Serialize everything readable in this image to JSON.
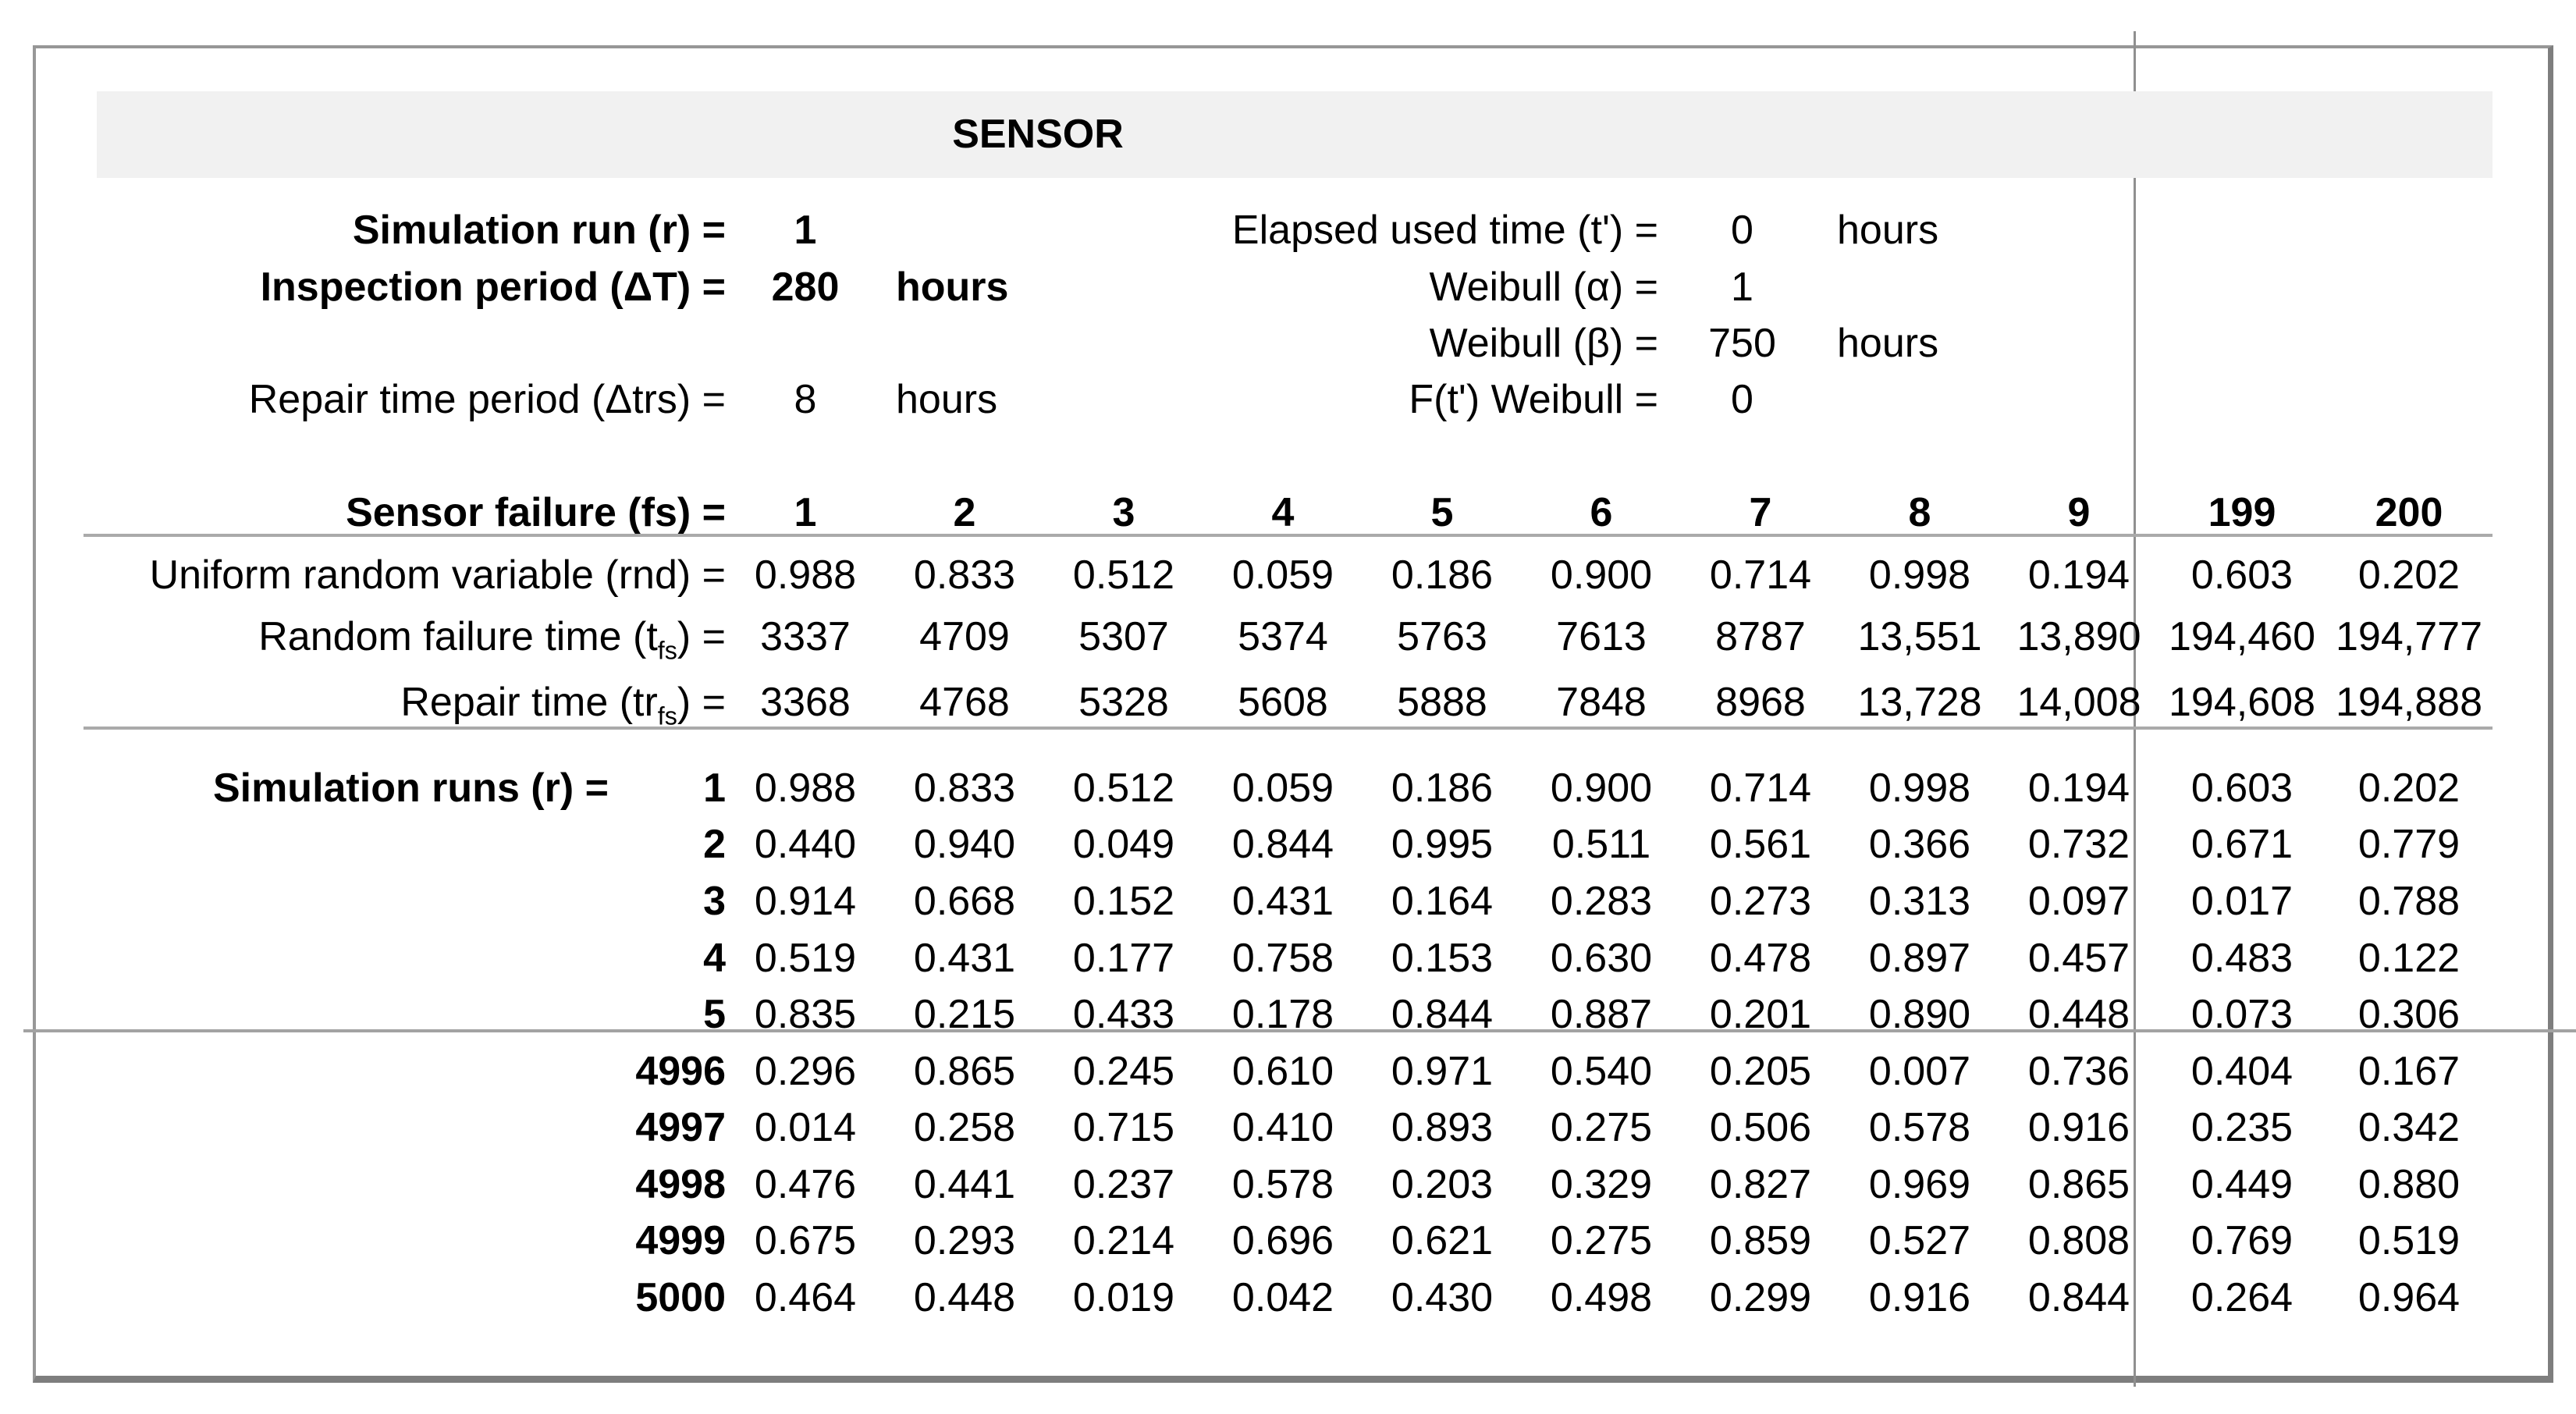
{
  "title": "SENSOR",
  "colors": {
    "band": "#f1f1f1",
    "rule": "#aaaaaa",
    "border": "#8f8f8f",
    "text": "#000000"
  },
  "params": {
    "left": [
      {
        "label": "Simulation run (r) =",
        "value": "1",
        "unit": ""
      },
      {
        "label": "Inspection period (ΔT) =",
        "value": "280",
        "unit": "hours"
      },
      {
        "label": "Repair time period (Δtrs) =",
        "value": "8",
        "unit": "hours"
      }
    ],
    "right": [
      {
        "label": "Elapsed used time (t') =",
        "value": "0",
        "unit": "hours"
      },
      {
        "label": "Weibull (α) =",
        "value": "1",
        "unit": ""
      },
      {
        "label": "Weibull (β) =",
        "value": "750",
        "unit": "hours"
      },
      {
        "label": "F(t') Weibull =",
        "value": "0",
        "unit": ""
      }
    ]
  },
  "matrix": {
    "header": {
      "label": "Sensor failure (fs) =",
      "cols": [
        "1",
        "2",
        "3",
        "4",
        "5",
        "6",
        "7",
        "8",
        "9",
        "199",
        "200"
      ]
    },
    "stats": [
      {
        "pre": "Uniform random variable (rnd) =",
        "sub": "",
        "post": "",
        "values": [
          "0.988",
          "0.833",
          "0.512",
          "0.059",
          "0.186",
          "0.900",
          "0.714",
          "0.998",
          "0.194",
          "0.603",
          "0.202"
        ]
      },
      {
        "pre": "Random failure time (t",
        "sub": "fs",
        "post": ") =",
        "values": [
          "3337",
          "4709",
          "5307",
          "5374",
          "5763",
          "7613",
          "8787",
          "13,551",
          "13,890",
          "194,460",
          "194,777"
        ]
      },
      {
        "pre": "Repair time (tr",
        "sub": "fs",
        "post": ") =",
        "values": [
          "3368",
          "4768",
          "5328",
          "5608",
          "5888",
          "7848",
          "8968",
          "13,728",
          "14,008",
          "194,608",
          "194,888"
        ]
      }
    ],
    "runs_label": "Simulation runs (r) =",
    "runs": [
      {
        "run": "1",
        "values": [
          "0.988",
          "0.833",
          "0.512",
          "0.059",
          "0.186",
          "0.900",
          "0.714",
          "0.998",
          "0.194",
          "0.603",
          "0.202"
        ]
      },
      {
        "run": "2",
        "values": [
          "0.440",
          "0.940",
          "0.049",
          "0.844",
          "0.995",
          "0.511",
          "0.561",
          "0.366",
          "0.732",
          "0.671",
          "0.779"
        ]
      },
      {
        "run": "3",
        "values": [
          "0.914",
          "0.668",
          "0.152",
          "0.431",
          "0.164",
          "0.283",
          "0.273",
          "0.313",
          "0.097",
          "0.017",
          "0.788"
        ]
      },
      {
        "run": "4",
        "values": [
          "0.519",
          "0.431",
          "0.177",
          "0.758",
          "0.153",
          "0.630",
          "0.478",
          "0.897",
          "0.457",
          "0.483",
          "0.122"
        ]
      },
      {
        "run": "5",
        "values": [
          "0.835",
          "0.215",
          "0.433",
          "0.178",
          "0.844",
          "0.887",
          "0.201",
          "0.890",
          "0.448",
          "0.073",
          "0.306"
        ]
      },
      {
        "run": "4996",
        "values": [
          "0.296",
          "0.865",
          "0.245",
          "0.610",
          "0.971",
          "0.540",
          "0.205",
          "0.007",
          "0.736",
          "0.404",
          "0.167"
        ]
      },
      {
        "run": "4997",
        "values": [
          "0.014",
          "0.258",
          "0.715",
          "0.410",
          "0.893",
          "0.275",
          "0.506",
          "0.578",
          "0.916",
          "0.235",
          "0.342"
        ]
      },
      {
        "run": "4998",
        "values": [
          "0.476",
          "0.441",
          "0.237",
          "0.578",
          "0.203",
          "0.329",
          "0.827",
          "0.969",
          "0.865",
          "0.449",
          "0.880"
        ]
      },
      {
        "run": "4999",
        "values": [
          "0.675",
          "0.293",
          "0.214",
          "0.696",
          "0.621",
          "0.275",
          "0.859",
          "0.527",
          "0.808",
          "0.769",
          "0.519"
        ]
      },
      {
        "run": "5000",
        "values": [
          "0.464",
          "0.448",
          "0.019",
          "0.042",
          "0.430",
          "0.498",
          "0.299",
          "0.916",
          "0.844",
          "0.264",
          "0.964"
        ]
      }
    ]
  }
}
